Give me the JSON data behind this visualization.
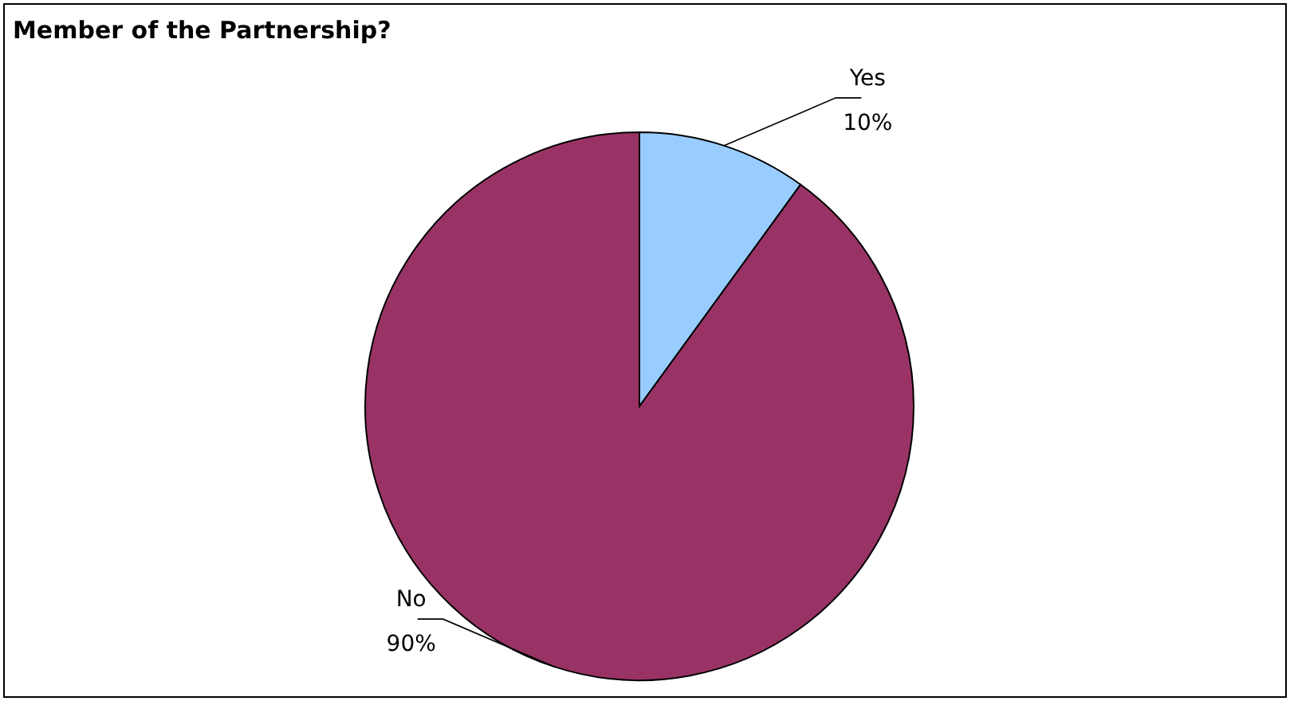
{
  "chart_data": {
    "type": "pie",
    "title": "Member of the Partnership?",
    "categories": [
      "Yes",
      "No"
    ],
    "values": [
      10,
      90
    ],
    "colors": [
      "#99ccff",
      "#993366"
    ],
    "value_labels": [
      "10%",
      "90%"
    ]
  }
}
